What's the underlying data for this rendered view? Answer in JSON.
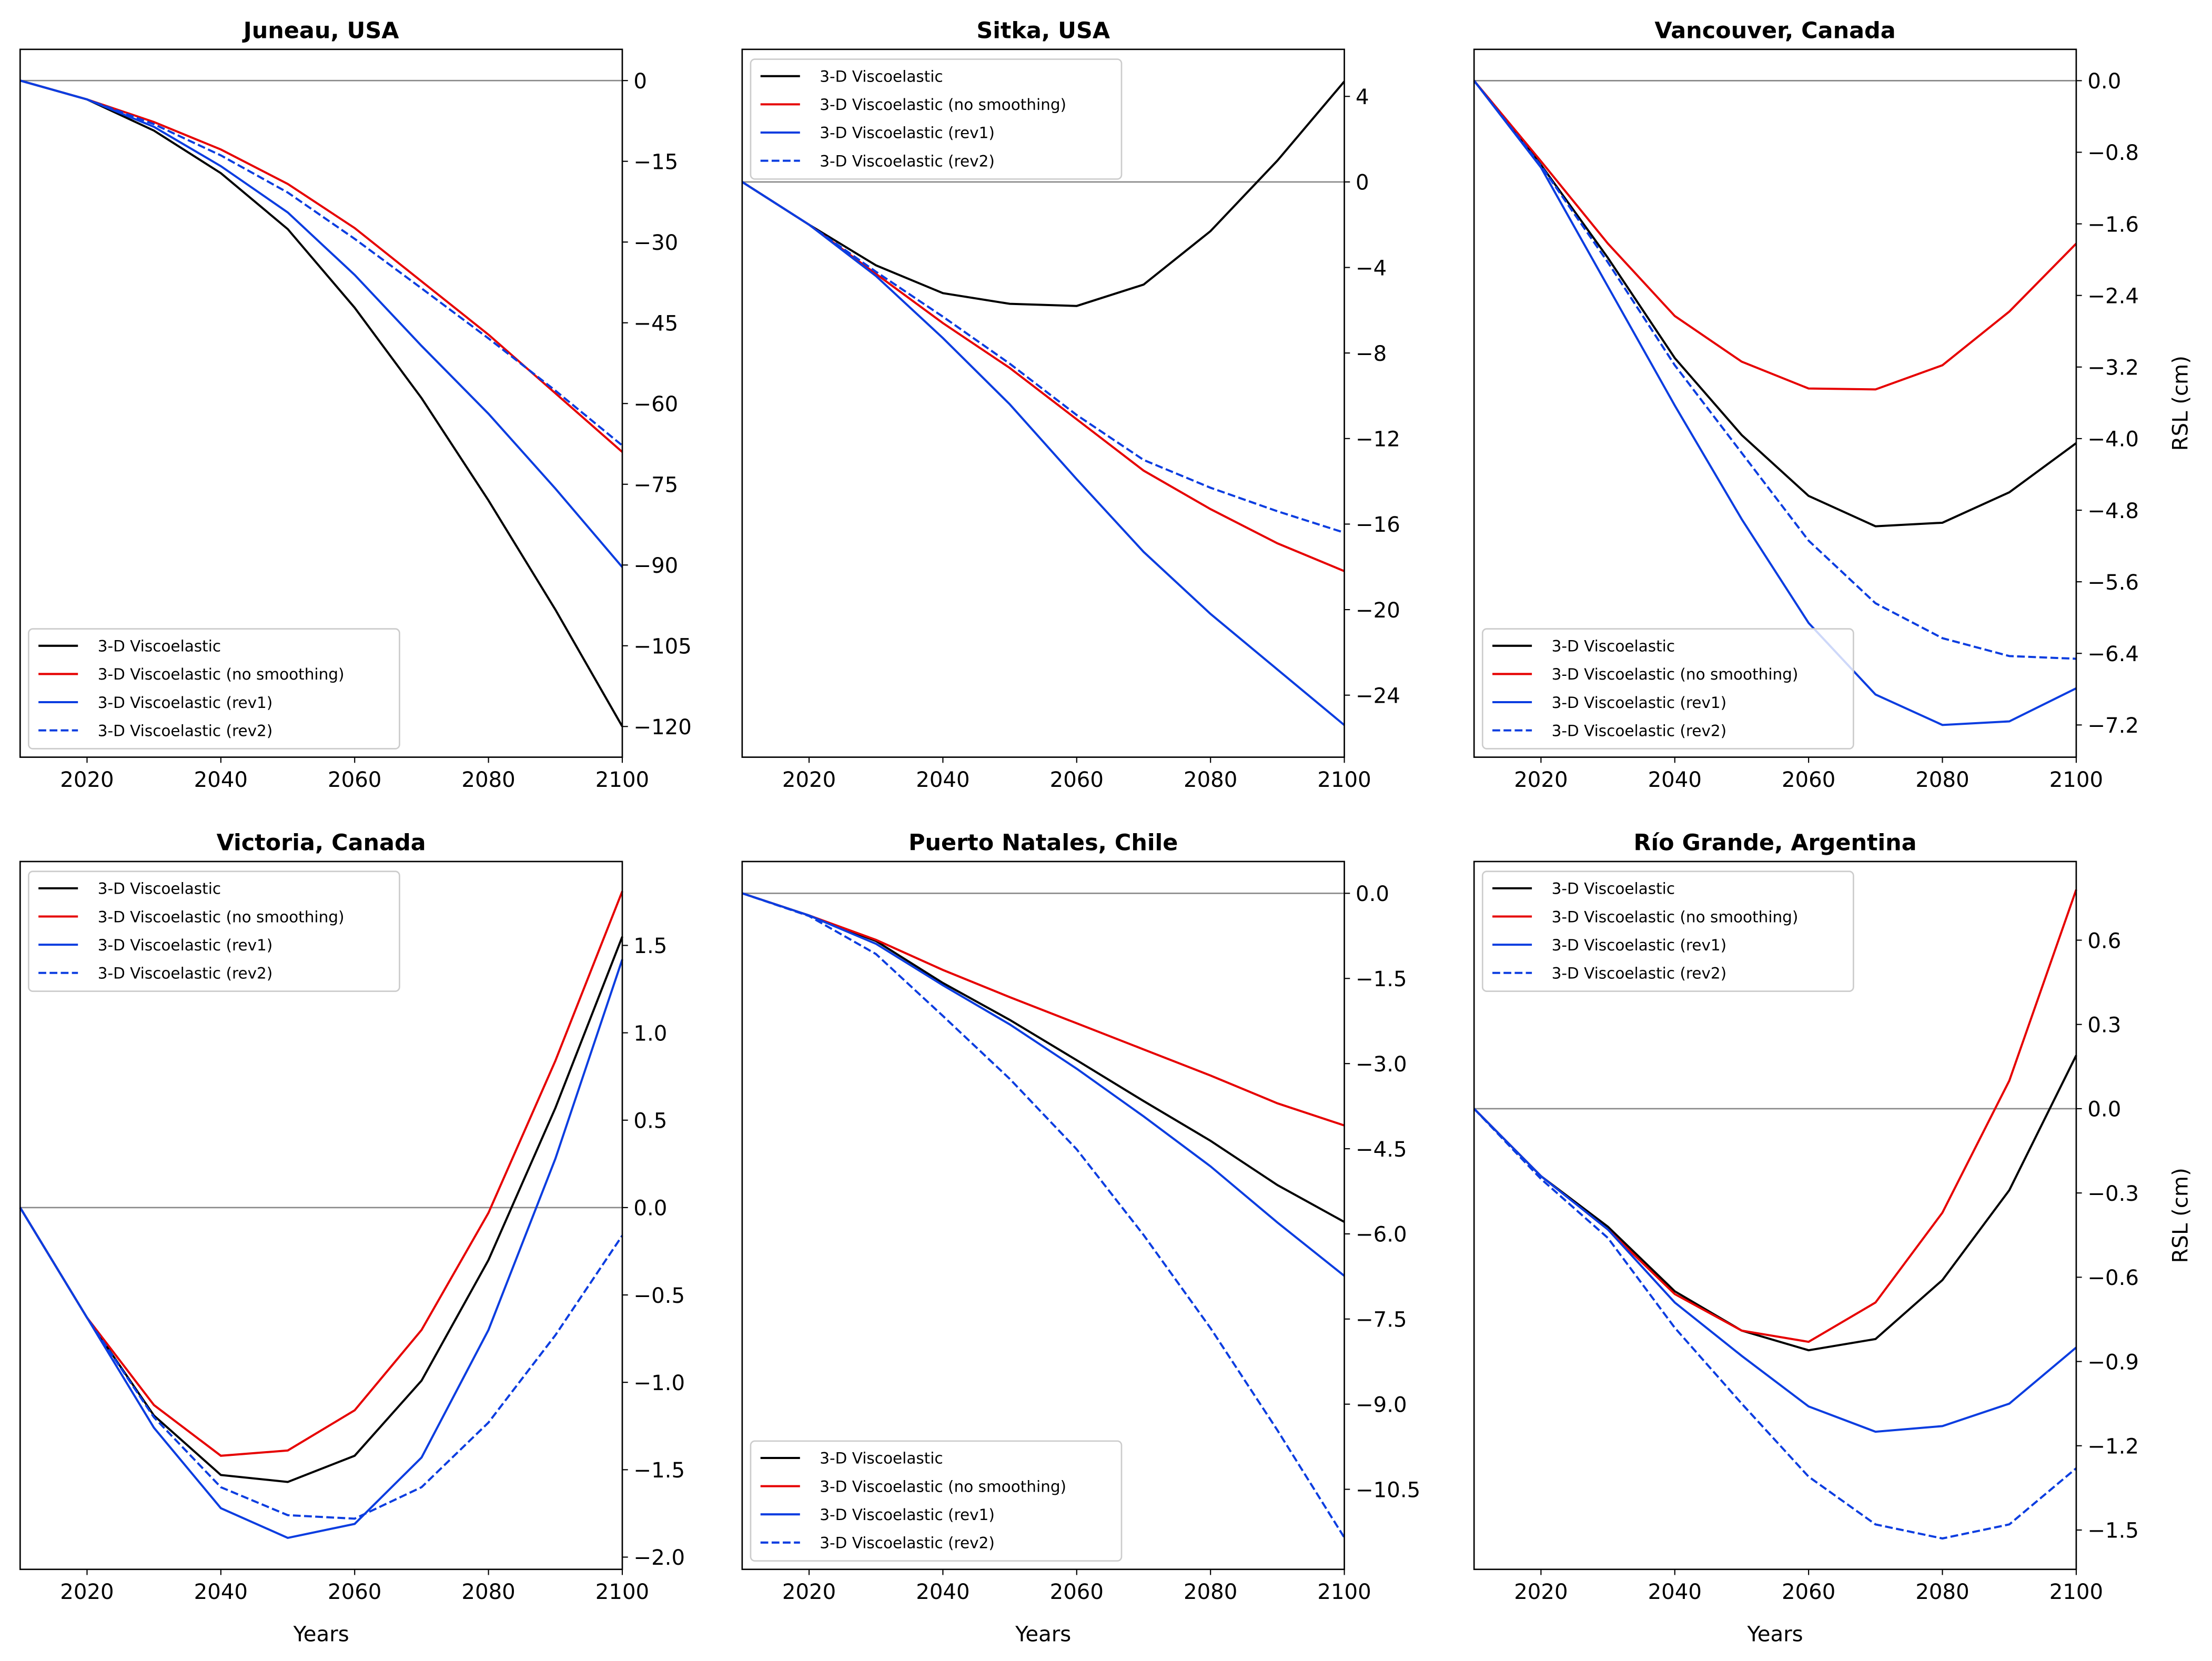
{
  "chart_data": [
    {
      "type": "line",
      "title": "Juneau, USA",
      "xlabel": "",
      "ylabel": "",
      "x": [
        2010,
        2020,
        2030,
        2040,
        2050,
        2060,
        2070,
        2080,
        2090,
        2100
      ],
      "xlim": [
        2010,
        2100
      ],
      "ylim": [
        -125.7,
        5.8
      ],
      "xticks": [
        2020,
        2040,
        2060,
        2080,
        2100
      ],
      "yticks": [
        0,
        -15,
        -30,
        -45,
        -60,
        -75,
        -90,
        -105,
        -120
      ],
      "ytick_labels": [
        "0",
        "−15",
        "−30",
        "−45",
        "−60",
        "−75",
        "−90",
        "−105",
        "−120"
      ],
      "y_axis_side": "right",
      "zero_line": true,
      "legend": "lower-left",
      "series": [
        {
          "name": "3-D Viscoelastic",
          "color": "#000000",
          "dash": "solid",
          "values": [
            0,
            -3.5,
            -9.3,
            -17.2,
            -27.6,
            -42.2,
            -59,
            -78,
            -98.3,
            -120
          ]
        },
        {
          "name": "3-D Viscoelastic (no smoothing)",
          "color": "#e60000",
          "dash": "solid",
          "values": [
            0,
            -3.5,
            -7.7,
            -12.8,
            -19.2,
            -27.4,
            -37.3,
            -47.2,
            -58.1,
            -69
          ]
        },
        {
          "name": "3-D Viscoelastic (rev1)",
          "color": "#0b3de0",
          "dash": "solid",
          "values": [
            0,
            -3.5,
            -8.6,
            -15.9,
            -24.5,
            -36.1,
            -49.3,
            -61.9,
            -75.8,
            -90.4
          ]
        },
        {
          "name": "3-D Viscoelastic (rev2)",
          "color": "#0b3de0",
          "dash": "dashed",
          "values": [
            0,
            -3.5,
            -8.1,
            -13.9,
            -20.8,
            -29.4,
            -38.6,
            -47.9,
            -57.6,
            -67.8
          ]
        }
      ]
    },
    {
      "type": "line",
      "title": "Sitka, USA",
      "xlabel": "",
      "ylabel": "",
      "x": [
        2010,
        2020,
        2030,
        2040,
        2050,
        2060,
        2070,
        2080,
        2090,
        2100
      ],
      "xlim": [
        2010,
        2100
      ],
      "ylim": [
        -26.9,
        6.2
      ],
      "xticks": [
        2020,
        2040,
        2060,
        2080,
        2100
      ],
      "yticks": [
        4,
        0,
        -4,
        -8,
        -12,
        -16,
        -20,
        -24
      ],
      "ytick_labels": [
        "4",
        "0",
        "−4",
        "−8",
        "−12",
        "−16",
        "−20",
        "−24"
      ],
      "y_axis_side": "right",
      "zero_line": true,
      "legend": "upper-left",
      "series": [
        {
          "name": "3-D Viscoelastic",
          "color": "#000000",
          "dash": "solid",
          "values": [
            0,
            -2,
            -3.9,
            -5.2,
            -5.7,
            -5.8,
            -4.8,
            -2.3,
            1.0,
            4.7
          ]
        },
        {
          "name": "3-D Viscoelastic (no smoothing)",
          "color": "#e60000",
          "dash": "solid",
          "values": [
            0,
            -2,
            -4.3,
            -6.6,
            -8.7,
            -11.1,
            -13.5,
            -15.3,
            -16.9,
            -18.2
          ]
        },
        {
          "name": "3-D Viscoelastic (rev1)",
          "color": "#0b3de0",
          "dash": "solid",
          "values": [
            0,
            -2,
            -4.4,
            -7.3,
            -10.4,
            -13.9,
            -17.3,
            -20.2,
            -22.8,
            -25.4
          ]
        },
        {
          "name": "3-D Viscoelastic (rev2)",
          "color": "#0b3de0",
          "dash": "dashed",
          "values": [
            0,
            -2,
            -4.2,
            -6.3,
            -8.5,
            -10.9,
            -13.0,
            -14.3,
            -15.4,
            -16.4
          ]
        }
      ]
    },
    {
      "type": "line",
      "title": "Vancouver, Canada",
      "xlabel": "",
      "ylabel": "RSL (cm)",
      "x": [
        2010,
        2020,
        2030,
        2040,
        2050,
        2060,
        2070,
        2080,
        2090,
        2100
      ],
      "xlim": [
        2010,
        2100
      ],
      "ylim": [
        -7.56,
        0.35
      ],
      "xticks": [
        2020,
        2040,
        2060,
        2080,
        2100
      ],
      "yticks": [
        0,
        -0.8,
        -1.6,
        -2.4,
        -3.2,
        -4.0,
        -4.8,
        -5.6,
        -6.4,
        -7.2
      ],
      "ytick_labels": [
        "0.0",
        "−0.8",
        "−1.6",
        "−2.4",
        "−3.2",
        "−4.0",
        "−4.8",
        "−5.6",
        "−6.4",
        "−7.2"
      ],
      "y_axis_side": "right",
      "zero_line": true,
      "legend": "lower-left",
      "series": [
        {
          "name": "3-D Viscoelastic",
          "color": "#000000",
          "dash": "solid",
          "values": [
            0,
            -0.94,
            -1.98,
            -3.1,
            -3.96,
            -4.64,
            -4.98,
            -4.94,
            -4.6,
            -4.05
          ]
        },
        {
          "name": "3-D Viscoelastic (no smoothing)",
          "color": "#e60000",
          "dash": "solid",
          "values": [
            0,
            -0.9,
            -1.82,
            -2.63,
            -3.14,
            -3.44,
            -3.45,
            -3.18,
            -2.58,
            -1.82
          ]
        },
        {
          "name": "3-D Viscoelastic (rev1)",
          "color": "#0b3de0",
          "dash": "solid",
          "values": [
            0,
            -0.97,
            -2.3,
            -3.63,
            -4.9,
            -6.06,
            -6.86,
            -7.2,
            -7.16,
            -6.79
          ]
        },
        {
          "name": "3-D Viscoelastic (rev2)",
          "color": "#0b3de0",
          "dash": "dashed",
          "values": [
            0,
            -0.95,
            -2.03,
            -3.18,
            -4.16,
            -5.14,
            -5.84,
            -6.23,
            -6.43,
            -6.46
          ]
        }
      ]
    },
    {
      "type": "line",
      "title": "Victoria, Canada",
      "xlabel": "Years",
      "ylabel": "",
      "x": [
        2010,
        2020,
        2030,
        2040,
        2050,
        2060,
        2070,
        2080,
        2090,
        2100
      ],
      "xlim": [
        2010,
        2100
      ],
      "ylim": [
        -2.07,
        1.98
      ],
      "xticks": [
        2020,
        2040,
        2060,
        2080,
        2100
      ],
      "yticks": [
        1.5,
        1.0,
        0.5,
        0,
        -0.5,
        -1.0,
        -1.5,
        -2.0
      ],
      "ytick_labels": [
        "1.5",
        "1.0",
        "0.5",
        "0.0",
        "−0.5",
        "−1.0",
        "−1.5",
        "−2.0"
      ],
      "y_axis_side": "right",
      "zero_line": true,
      "legend": "upper-left",
      "series": [
        {
          "name": "3-D Viscoelastic",
          "color": "#000000",
          "dash": "solid",
          "values": [
            0,
            -0.63,
            -1.19,
            -1.53,
            -1.57,
            -1.42,
            -0.99,
            -0.3,
            0.57,
            1.55
          ]
        },
        {
          "name": "3-D Viscoelastic (no smoothing)",
          "color": "#e60000",
          "dash": "solid",
          "values": [
            0,
            -0.63,
            -1.13,
            -1.42,
            -1.39,
            -1.16,
            -0.7,
            -0.03,
            0.84,
            1.81
          ]
        },
        {
          "name": "3-D Viscoelastic (rev1)",
          "color": "#0b3de0",
          "dash": "solid",
          "values": [
            0,
            -0.63,
            -1.26,
            -1.72,
            -1.89,
            -1.81,
            -1.43,
            -0.7,
            0.28,
            1.42
          ]
        },
        {
          "name": "3-D Viscoelastic (rev2)",
          "color": "#0b3de0",
          "dash": "dashed",
          "values": [
            0,
            -0.63,
            -1.2,
            -1.6,
            -1.76,
            -1.78,
            -1.6,
            -1.23,
            -0.73,
            -0.16
          ]
        }
      ]
    },
    {
      "type": "line",
      "title": "Puerto Natales, Chile",
      "xlabel": "Years",
      "ylabel": "",
      "x": [
        2010,
        2020,
        2030,
        2040,
        2050,
        2060,
        2070,
        2080,
        2090,
        2100
      ],
      "xlim": [
        2010,
        2100
      ],
      "ylim": [
        -11.91,
        0.56
      ],
      "xticks": [
        2020,
        2040,
        2060,
        2080,
        2100
      ],
      "yticks": [
        0,
        -1.5,
        -3.0,
        -4.5,
        -6.0,
        -7.5,
        -9.0,
        -10.5
      ],
      "ytick_labels": [
        "0.0",
        "−1.5",
        "−3.0",
        "−4.5",
        "−6.0",
        "−7.5",
        "−9.0",
        "−10.5"
      ],
      "y_axis_side": "right",
      "zero_line": true,
      "legend": "lower-left",
      "series": [
        {
          "name": "3-D Viscoelastic",
          "color": "#000000",
          "dash": "solid",
          "values": [
            0,
            -0.39,
            -0.84,
            -1.58,
            -2.23,
            -2.94,
            -3.66,
            -4.36,
            -5.14,
            -5.79
          ]
        },
        {
          "name": "3-D Viscoelastic (no smoothing)",
          "color": "#e60000",
          "dash": "solid",
          "values": [
            0,
            -0.39,
            -0.82,
            -1.35,
            -1.83,
            -2.29,
            -2.75,
            -3.21,
            -3.7,
            -4.09
          ]
        },
        {
          "name": "3-D Viscoelastic (rev1)",
          "color": "#0b3de0",
          "dash": "solid",
          "values": [
            0,
            -0.39,
            -0.89,
            -1.62,
            -2.31,
            -3.09,
            -3.93,
            -4.81,
            -5.8,
            -6.74
          ]
        },
        {
          "name": "3-D Viscoelastic (rev2)",
          "color": "#0b3de0",
          "dash": "dashed",
          "values": [
            0,
            -0.4,
            -1.07,
            -2.16,
            -3.27,
            -4.51,
            -6.02,
            -7.66,
            -9.46,
            -11.35
          ]
        }
      ]
    },
    {
      "type": "line",
      "title": "Río Grande, Argentina",
      "xlabel": "Years",
      "ylabel": "RSL (cm)",
      "x": [
        2010,
        2020,
        2030,
        2040,
        2050,
        2060,
        2070,
        2080,
        2090,
        2100
      ],
      "xlim": [
        2010,
        2100
      ],
      "ylim": [
        -1.64,
        0.88
      ],
      "xticks": [
        2020,
        2040,
        2060,
        2080,
        2100
      ],
      "yticks": [
        0.6,
        0.3,
        0,
        -0.3,
        -0.6,
        -0.9,
        -1.2,
        -1.5
      ],
      "ytick_labels": [
        "0.6",
        "0.3",
        "0.0",
        "−0.3",
        "−0.6",
        "−0.9",
        "−1.2",
        "−1.5"
      ],
      "y_axis_side": "right",
      "zero_line": true,
      "legend": "upper-left",
      "series": [
        {
          "name": "3-D Viscoelastic",
          "color": "#000000",
          "dash": "solid",
          "values": [
            0,
            -0.24,
            -0.42,
            -0.65,
            -0.79,
            -0.86,
            -0.82,
            -0.61,
            -0.29,
            0.19
          ]
        },
        {
          "name": "3-D Viscoelastic (no smoothing)",
          "color": "#e60000",
          "dash": "solid",
          "values": [
            0,
            -0.24,
            -0.43,
            -0.66,
            -0.79,
            -0.83,
            -0.69,
            -0.37,
            0.1,
            0.78
          ]
        },
        {
          "name": "3-D Viscoelastic (rev1)",
          "color": "#0b3de0",
          "dash": "solid",
          "values": [
            0,
            -0.24,
            -0.43,
            -0.69,
            -0.88,
            -1.06,
            -1.15,
            -1.13,
            -1.05,
            -0.85
          ]
        },
        {
          "name": "3-D Viscoelastic (rev2)",
          "color": "#0b3de0",
          "dash": "dashed",
          "values": [
            0,
            -0.25,
            -0.46,
            -0.78,
            -1.05,
            -1.31,
            -1.48,
            -1.53,
            -1.48,
            -1.28
          ]
        }
      ]
    }
  ]
}
